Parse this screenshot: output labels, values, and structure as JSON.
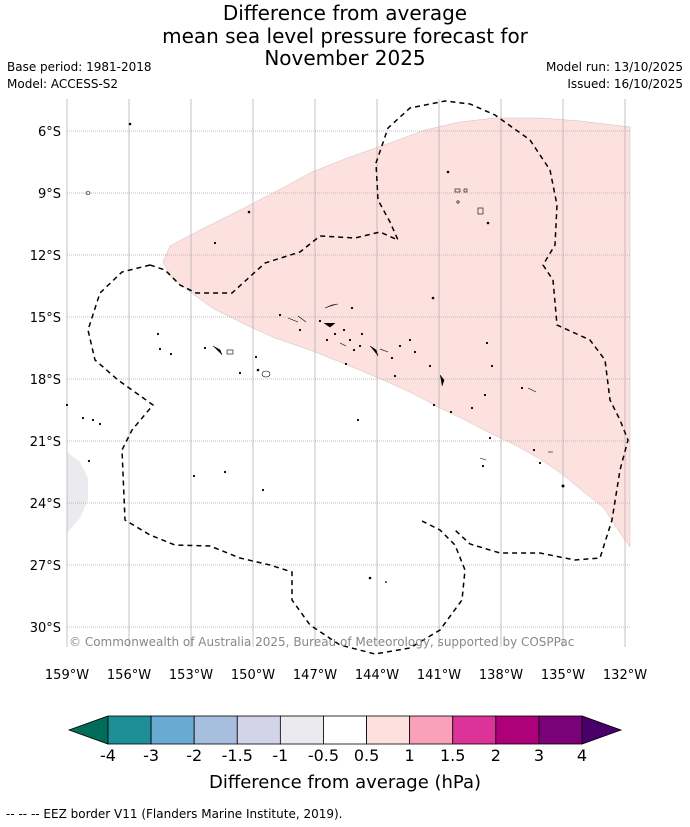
{
  "title": {
    "line1": "Difference from average",
    "line2": "mean sea level pressure forecast for",
    "line3": "November 2025"
  },
  "meta_left": {
    "base_period": "Base period: 1981-2018",
    "model": "Model: ACCESS-S2"
  },
  "meta_right": {
    "model_run": "Model run: 13/10/2025",
    "issued": "Issued: 16/10/2025"
  },
  "map": {
    "lat_labels": [
      "6°S",
      "9°S",
      "12°S",
      "15°S",
      "18°S",
      "21°S",
      "24°S",
      "27°S",
      "30°S"
    ],
    "lon_labels": [
      "159°W",
      "156°W",
      "153°W",
      "150°W",
      "147°W",
      "144°W",
      "141°W",
      "138°W",
      "135°W",
      "132°W"
    ],
    "copyright": "© Commonwealth of Australia 2025, Bureau of Meteorology, supported by COSPPac"
  },
  "colorbar": {
    "label": "Difference from average (hPa)",
    "ticks": [
      "-4",
      "-3",
      "-2",
      "-1.5",
      "-1",
      "-0.5",
      "0.5",
      "1",
      "1.5",
      "2",
      "3",
      "4"
    ],
    "colors": [
      "#1e8f97",
      "#68aad1",
      "#a7bedf",
      "#d4d4e8",
      "#ebeaee",
      "#ffffff",
      "#fde1de",
      "#f9a1ba",
      "#dd3398",
      "#ad0079",
      "#7a0177"
    ],
    "under_color": "#006d5b",
    "over_color": "#49006a"
  },
  "footnote": "--  --  -- EEZ border V11 (Flanders Marine Institute, 2019)."
}
